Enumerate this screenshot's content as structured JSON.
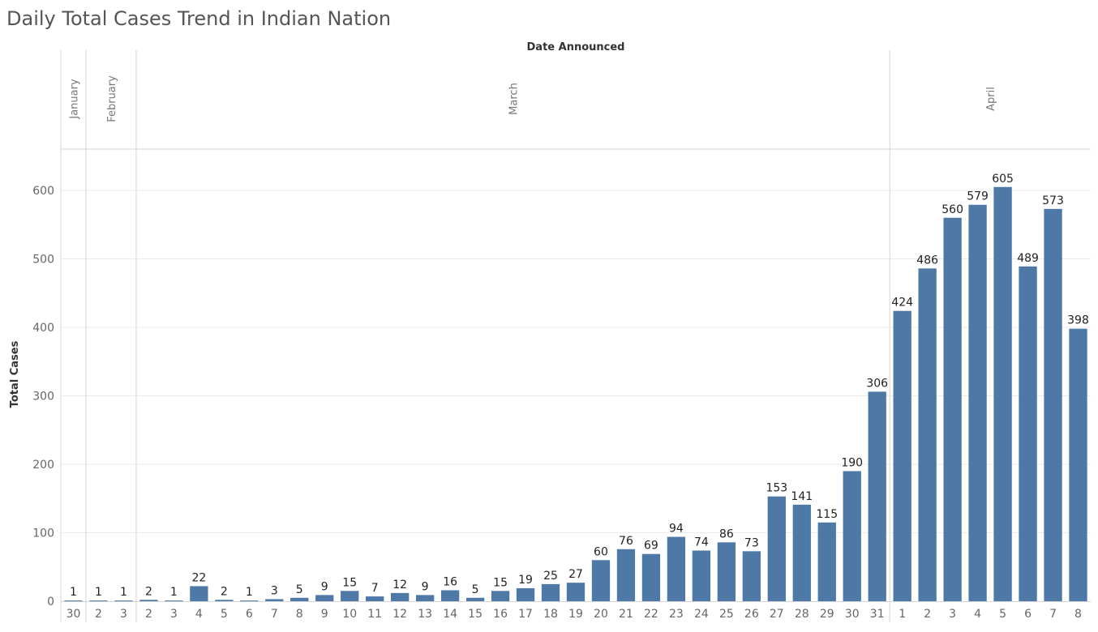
{
  "title": "Daily Total Cases Trend in Indian Nation",
  "colors": {
    "bar": "#4e79a7",
    "grid": "#ebebeb",
    "divider": "#d4d4d4",
    "axis_text": "#666666",
    "label_text": "#222222"
  },
  "chart_data": {
    "type": "bar",
    "title": "Daily Total Cases Trend in Indian Nation",
    "xlabel": "Date Announced",
    "ylabel": "Total Cases",
    "ylim": [
      0,
      660
    ],
    "yticks": [
      0,
      100,
      200,
      300,
      400,
      500,
      600
    ],
    "grid": true,
    "months": [
      {
        "name": "January",
        "days": [
          30
        ],
        "values": [
          1
        ]
      },
      {
        "name": "February",
        "days": [
          2,
          3
        ],
        "values": [
          1,
          1
        ]
      },
      {
        "name": "March",
        "days": [
          2,
          3,
          4,
          5,
          6,
          7,
          8,
          9,
          10,
          11,
          12,
          13,
          14,
          15,
          16,
          17,
          18,
          19,
          20,
          21,
          22,
          23,
          24,
          25,
          26,
          27,
          28,
          29,
          30,
          31
        ],
        "values": [
          2,
          1,
          22,
          2,
          1,
          3,
          5,
          9,
          15,
          7,
          12,
          9,
          16,
          5,
          15,
          19,
          25,
          27,
          60,
          76,
          69,
          94,
          74,
          86,
          73,
          153,
          141,
          115,
          190,
          306
        ]
      },
      {
        "name": "April",
        "days": [
          1,
          2,
          3,
          4,
          5,
          6,
          7,
          8
        ],
        "values": [
          424,
          486,
          560,
          579,
          605,
          489,
          573,
          398
        ]
      }
    ]
  }
}
